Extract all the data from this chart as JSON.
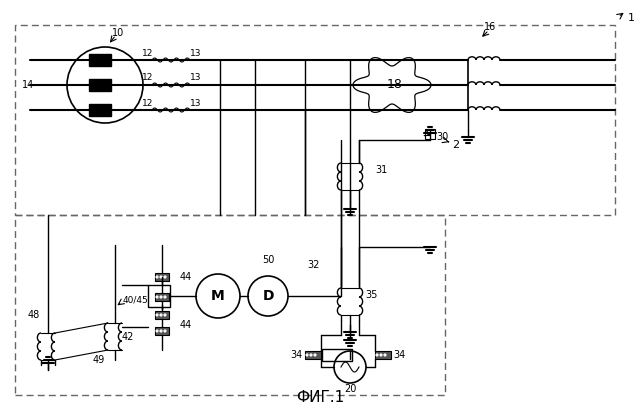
{
  "bg": "#ffffff",
  "title": "ФИГ.1",
  "labels": {
    "1": "1",
    "2": "2",
    "10": "10",
    "12": "12",
    "13": "13",
    "14": "14",
    "16": "16",
    "18": "18",
    "20": "20",
    "30": "30",
    "31": "31",
    "32": "32",
    "34": "34",
    "35": "35",
    "40_45": "40/45",
    "42": "42",
    "44": "44",
    "48": "48",
    "49": "49",
    "50": "50",
    "M": "M",
    "D": "D"
  }
}
